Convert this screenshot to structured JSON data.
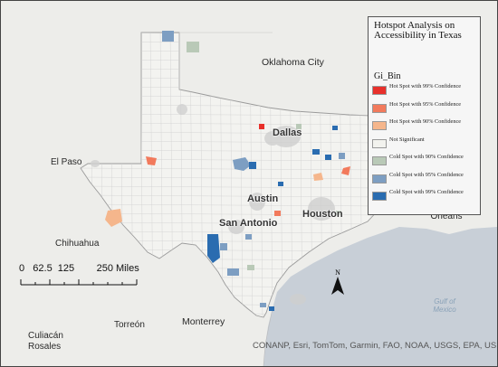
{
  "legend": {
    "title": "Hotspot Analysis on Accessibility in Texas",
    "field": "Gi_Bin",
    "items": [
      {
        "label": "Hot Spot with 99% Confidence",
        "color": "#e8302b"
      },
      {
        "label": "Hot Spot with 95% Confidence",
        "color": "#f27a5c"
      },
      {
        "label": "Hot Spot with 90% Confidence",
        "color": "#f5b68c"
      },
      {
        "label": "Not Significant",
        "color": "#f2f2ee"
      },
      {
        "label": "Cold Spot with 90% Confidence",
        "color": "#b9c9b7"
      },
      {
        "label": "Cold Spot with 95% Confidence",
        "color": "#7d9ec2"
      },
      {
        "label": "Cold Spot with 99% Confidence",
        "color": "#2a6cb0"
      }
    ]
  },
  "places": {
    "oklahoma_city": "Oklahoma City",
    "dallas": "Dallas",
    "el_paso": "El Paso",
    "austin": "Austin",
    "houston": "Houston",
    "san_antonio": "San Antonio",
    "new_orleans": "New Orleans",
    "chihuahua": "Chihuahua",
    "torreon": "Torreón",
    "monterrey": "Monterrey",
    "culiacan": "Culiacán Rosales",
    "gulf": "Gulf of Mexico"
  },
  "scale": {
    "label": "0   62.5  125        250 Miles",
    "unit": "Miles"
  },
  "north_arrow": "N",
  "attribution": "CONANP, Esri, TomTom, Garmin, FAO, NOAA, USGS, EPA, USFWS",
  "colors": {
    "land": "#ededea",
    "water": "#c7ced6",
    "texas_fill": "#f4f4f1",
    "county_line": "#c9c9c9"
  }
}
